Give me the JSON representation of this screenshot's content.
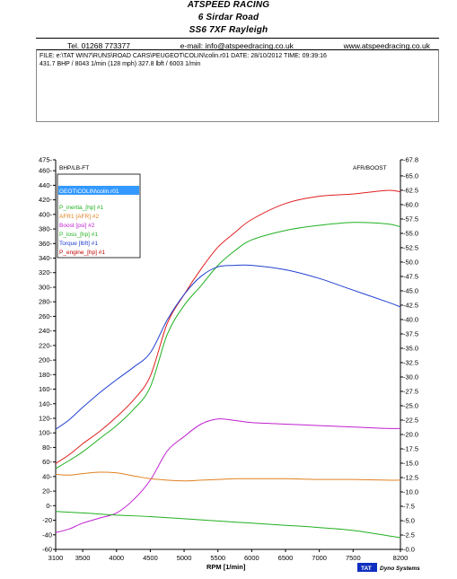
{
  "header": {
    "line1": "ATSPEED RACING",
    "line2": "6 Sirdar Road",
    "line3": "SS6 7XF Rayleigh",
    "tel": "Tel. 01268 773377",
    "email": "e-mail: info@atspeedracing.co.uk",
    "web": "www.atspeedracing.co.uk"
  },
  "info": {
    "file_line": "FILE: e:\\TAT  WIN7\\RUNS\\ROAD CARS\\PEUGEOT\\COLIN\\colin.r01  DATE: 28/10/2012  TIME: 09:39:16",
    "summary_line": "431.7 BHP / 8043 1/min (128 mph)    327.8 lbft / 6003 1/min"
  },
  "footer": {
    "brand_box": "TAT",
    "brand_text": "Dyno Systems"
  },
  "colors": {
    "red": "#e02020",
    "green": "#20b020",
    "blue": "#2040d0",
    "magenta": "#c020d0",
    "orange": "#e08020",
    "darkred": "#c00000"
  },
  "chart_data": {
    "type": "line",
    "title": "",
    "xlabel": "RPM [1/min]",
    "ylabel_left": "BHP/LB-FT",
    "ylabel_right": "AFR/BOOST",
    "xlim": [
      3100,
      8200
    ],
    "ylim_left": [
      -60,
      475
    ],
    "ylim_right": [
      0,
      67.8
    ],
    "x_ticks": [
      3100,
      3500,
      4000,
      4500,
      5000,
      5500,
      6000,
      6500,
      7000,
      7500,
      8200
    ],
    "y_ticks_left": [
      -60,
      -40,
      -20,
      0,
      20,
      40,
      60,
      80,
      100,
      120,
      140,
      160,
      180,
      200,
      220,
      240,
      260,
      280,
      300,
      320,
      340,
      360,
      380,
      400,
      420,
      440,
      460,
      475
    ],
    "y_ticks_right": [
      0.0,
      2.5,
      5.0,
      7.5,
      10.0,
      12.5,
      15.0,
      17.5,
      20.0,
      22.5,
      25.0,
      27.5,
      30.0,
      32.5,
      35.0,
      37.5,
      40.0,
      42.5,
      45.0,
      47.5,
      50.0,
      52.5,
      55.0,
      57.5,
      60.0,
      62.5,
      65.0,
      67.8
    ],
    "y_ticks_left_labels": [
      "-60",
      "-40",
      "-20",
      "0-",
      "20-",
      "40-",
      "60-",
      "80-",
      "100-",
      "120-",
      "140-",
      "160-",
      "180-",
      "200-",
      "220-",
      "240-",
      "260-",
      "280-",
      "300-",
      "320-",
      "340-",
      "360-",
      "380-",
      "400-",
      "420-",
      "440-",
      "460-",
      "475-"
    ],
    "y_ticks_right_labels": [
      "-0.0",
      "-2.5",
      "-5.0",
      "-7.5",
      "-10.0",
      "-12.5",
      "-15.0",
      "-17.5",
      "-20.0",
      "-22.5",
      "-25.0",
      "-27.5",
      "-30.0",
      "-32.5",
      "-35.0",
      "-37.5",
      "-40.0",
      "-42.5",
      "-45.0",
      "-47.5",
      "-50.0",
      "-52.5",
      "-55.0",
      "-57.5",
      "-60.0",
      "-62.5",
      "-65.0",
      "-67.8"
    ],
    "grid": false,
    "legend": {
      "placement": "top-left",
      "file_label": "GEOT\\COLIN\\colin.r01",
      "entries": [
        {
          "text": "P_inertia_[hp] #1",
          "color": "#20b020"
        },
        {
          "text": "AFR1  [AFR] #2",
          "color": "#e08020"
        },
        {
          "text": "Boost  [psi] #2",
          "color": "#c020d0"
        },
        {
          "text": "P_loss_[hp] #1",
          "color": "#20b020"
        },
        {
          "text": "Torque  [lbft] #1",
          "color": "#2040d0"
        },
        {
          "text": "P_engine_[hp] #1",
          "color": "#c00000"
        }
      ]
    },
    "series": [
      {
        "axis": "left",
        "color": "#e02020",
        "x": [
          3100,
          3300,
          3500,
          3750,
          4000,
          4250,
          4500,
          4750,
          5000,
          5250,
          5500,
          5750,
          6000,
          6500,
          7000,
          7500,
          8000,
          8200
        ],
        "values": [
          58,
          70,
          85,
          102,
          122,
          145,
          178,
          250,
          290,
          325,
          355,
          375,
          393,
          415,
          425,
          428,
          433,
          431
        ]
      },
      {
        "axis": "left",
        "color": "#20b020",
        "x": [
          3100,
          3300,
          3500,
          3750,
          4000,
          4250,
          4500,
          4750,
          5000,
          5250,
          5500,
          5750,
          6000,
          6500,
          7000,
          7500,
          8000,
          8200
        ],
        "values": [
          51,
          62,
          74,
          92,
          110,
          132,
          163,
          235,
          275,
          302,
          330,
          350,
          365,
          378,
          385,
          389,
          387,
          383
        ]
      },
      {
        "axis": "left",
        "color": "#2040d0",
        "x": [
          3100,
          3300,
          3500,
          3750,
          4000,
          4250,
          4500,
          4750,
          5000,
          5250,
          5500,
          5750,
          6000,
          6500,
          7000,
          7500,
          8000,
          8200
        ],
        "values": [
          105,
          118,
          135,
          155,
          173,
          190,
          210,
          255,
          290,
          315,
          328,
          330,
          330,
          324,
          312,
          296,
          280,
          273
        ]
      },
      {
        "axis": "left",
        "color": "#c020d0",
        "x": [
          3100,
          3300,
          3500,
          3750,
          4000,
          4250,
          4500,
          4750,
          5000,
          5250,
          5500,
          5750,
          6000,
          6500,
          7000,
          7500,
          8000,
          8200
        ],
        "values": [
          -37,
          -32,
          -24,
          -17,
          -10,
          8,
          35,
          75,
          95,
          112,
          119,
          117,
          114,
          112,
          110,
          108,
          106,
          106
        ]
      },
      {
        "axis": "left",
        "color": "#e08020",
        "x": [
          3100,
          3300,
          3500,
          3750,
          4000,
          4250,
          4500,
          4750,
          5000,
          5250,
          5500,
          5750,
          6000,
          6500,
          7000,
          7500,
          8000,
          8200
        ],
        "values": [
          43,
          42,
          44,
          46,
          45,
          41,
          37,
          35,
          34,
          35,
          36,
          37,
          37,
          37,
          36,
          36,
          35,
          35
        ]
      },
      {
        "axis": "left",
        "color": "#20b020",
        "x": [
          3100,
          3500,
          4000,
          4500,
          5000,
          5500,
          6000,
          6500,
          7000,
          7500,
          8000,
          8200
        ],
        "values": [
          -8,
          -10,
          -13,
          -15,
          -18,
          -21,
          -24,
          -27,
          -30,
          -34,
          -41,
          -44
        ]
      }
    ]
  }
}
